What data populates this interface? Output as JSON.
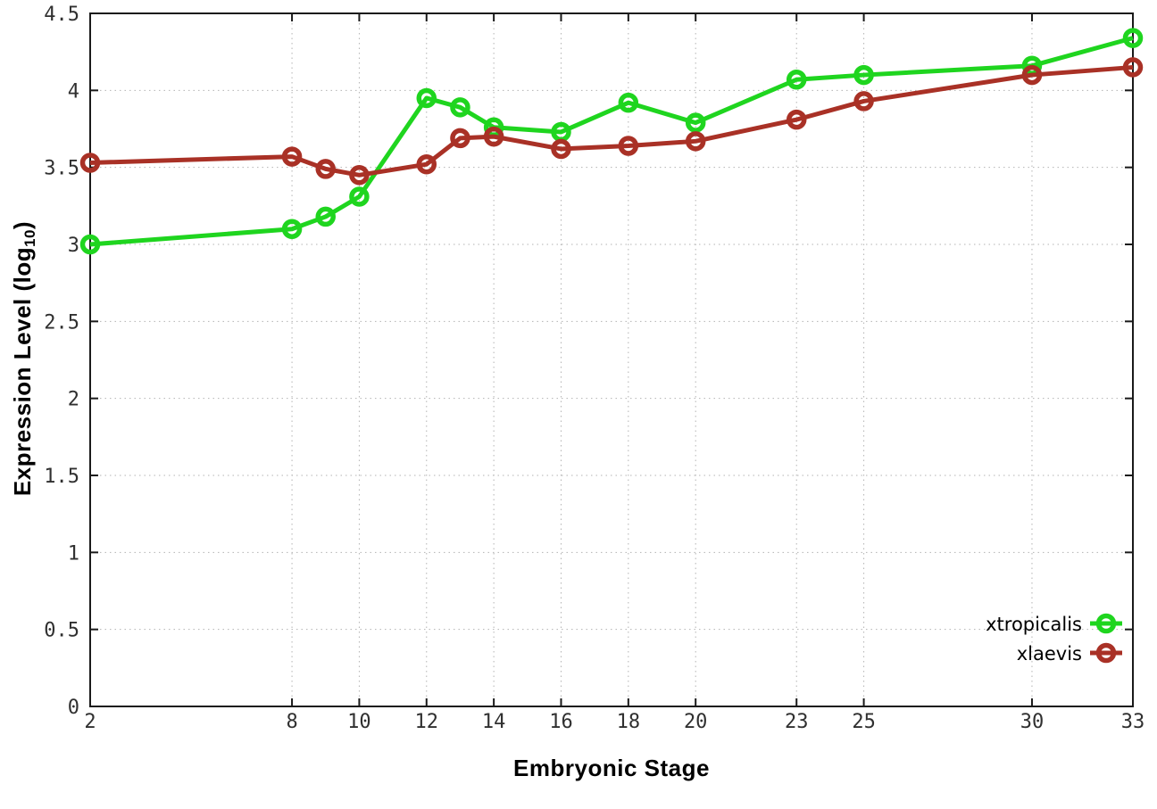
{
  "chart_data": {
    "type": "line",
    "title": "",
    "xlabel": "Embryonic Stage",
    "ylabel": "Expression Level (log10)",
    "ylabel_parts": {
      "prefix": "Expression Level (log",
      "sub": "10",
      "suffix": ")"
    },
    "x": [
      2,
      8,
      9,
      10,
      12,
      13,
      14,
      16,
      18,
      20,
      23,
      25,
      30,
      33
    ],
    "xticks": [
      2,
      8,
      10,
      12,
      14,
      16,
      18,
      20,
      23,
      25,
      30,
      33
    ],
    "yticks": [
      0,
      0.5,
      1,
      1.5,
      2,
      2.5,
      3,
      3.5,
      4,
      4.5
    ],
    "xlim": [
      2,
      33
    ],
    "ylim": [
      0,
      4.5
    ],
    "grid": true,
    "grid_style": "dotted",
    "legend_position": "bottom-right-inside",
    "series": [
      {
        "name": "xtropicalis",
        "color": "#1fd51f",
        "values": [
          3.0,
          3.1,
          3.18,
          3.31,
          3.95,
          3.89,
          3.76,
          3.73,
          3.92,
          3.79,
          4.07,
          4.1,
          4.16,
          4.34
        ]
      },
      {
        "name": "xlaevis",
        "color": "#a93126",
        "values": [
          3.53,
          3.57,
          3.49,
          3.45,
          3.52,
          3.69,
          3.7,
          3.62,
          3.64,
          3.67,
          3.81,
          3.93,
          4.1,
          4.15
        ]
      }
    ]
  },
  "style_colors": {
    "grid": "#b3b3b3",
    "axis": "#1a1a1a",
    "tick_text": "#303030",
    "background": "#ffffff"
  }
}
